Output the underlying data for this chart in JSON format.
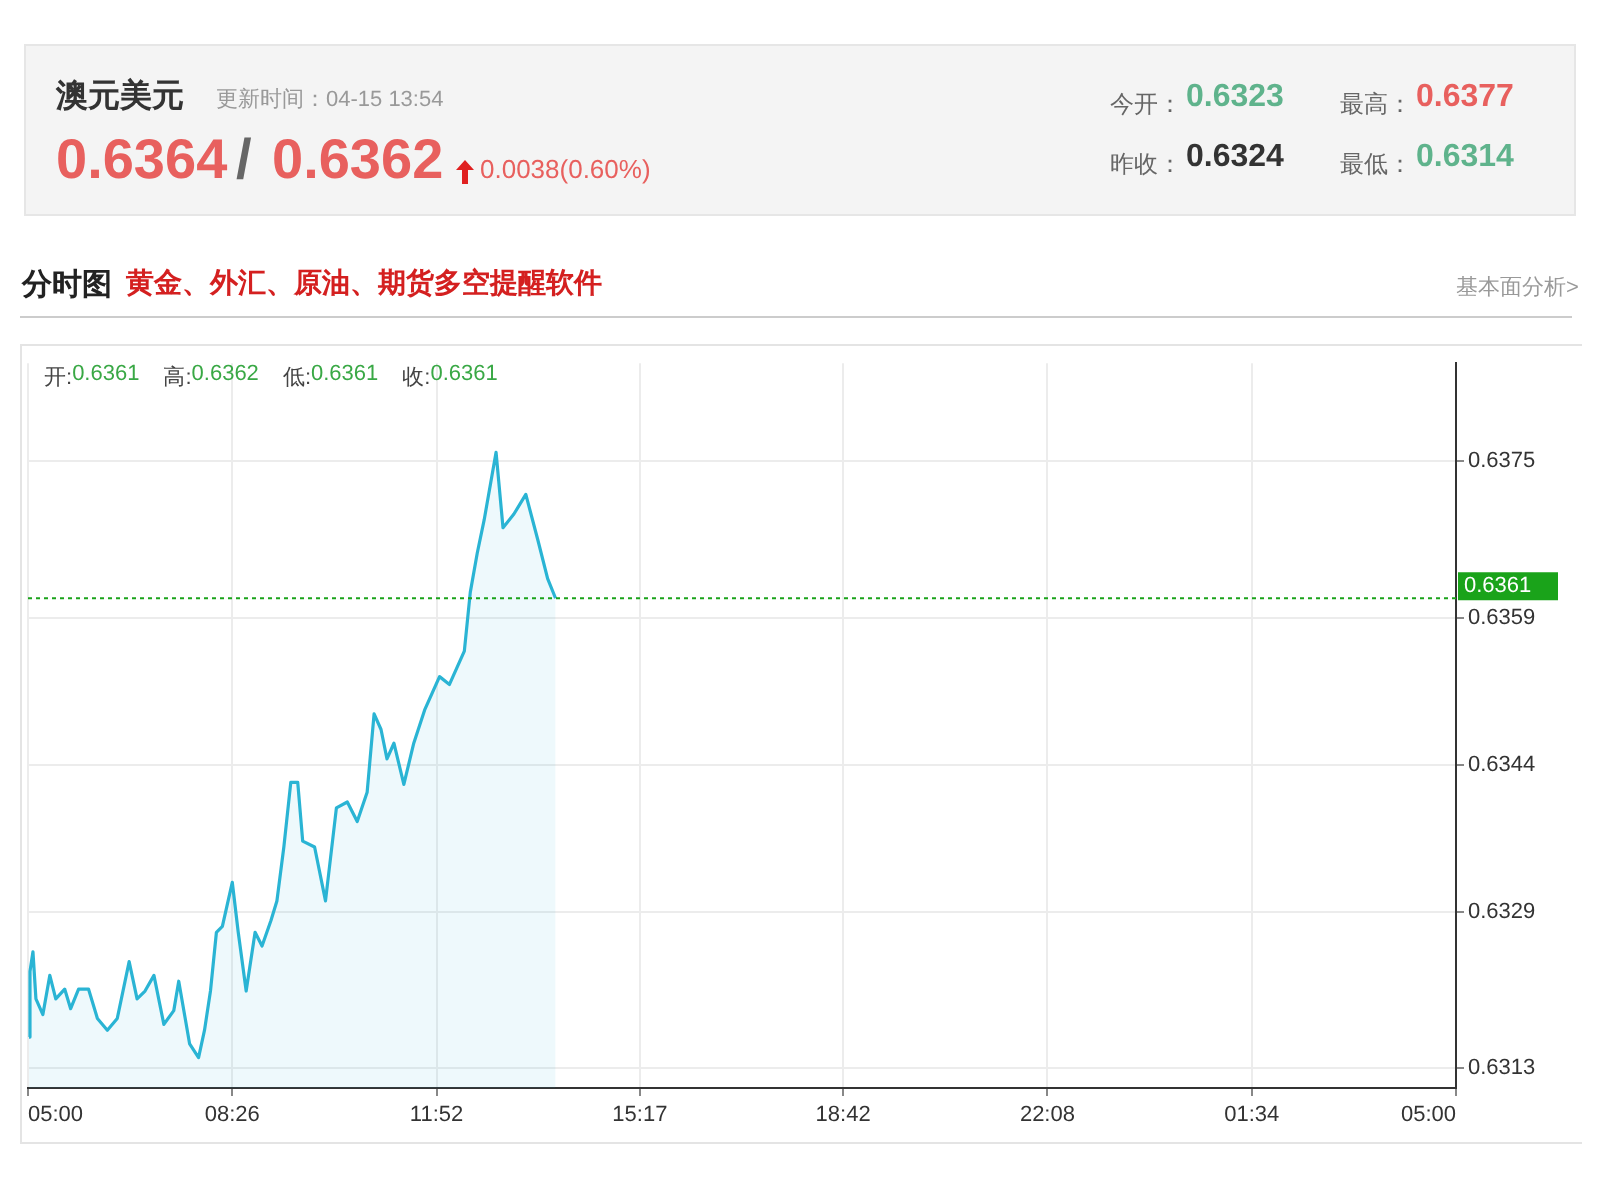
{
  "chart_data": {
    "type": "area",
    "title": "澳元美元",
    "subtitle": "更新时间：04-15 13:54",
    "annotations": [
      "0.6364",
      "/",
      "0.6362",
      "0.0038(0.60%)",
      "今开：",
      "0.6323",
      "最高：",
      "0.6377",
      "昨收：",
      "0.6324",
      "最低：",
      "0.6314",
      "分时图",
      "黄金、外汇、原油、期货多空提醒软件",
      "基本面分析>",
      "开:",
      "0.6361",
      "高:",
      "0.6362",
      "低:",
      "0.6361",
      "收:",
      "0.6361"
    ],
    "x": [
      "--04-15T05:01",
      "--04-15T05:02",
      "--04-15T05:05",
      "--04-15T05:08",
      "--04-15T05:15",
      "--04-15T05:22",
      "--04-15T05:28",
      "--04-15T05:37",
      "--04-15T05:43",
      "--04-15T05:51",
      "--04-15T06:01",
      "--04-15T06:10",
      "--04-15T06:20",
      "--04-15T06:30",
      "--04-15T06:42",
      "--04-15T06:50",
      "--04-15T06:58",
      "--04-15T07:07",
      "--04-15T07:17",
      "--04-15T07:27",
      "--04-15T07:32",
      "--04-15T07:43",
      "--04-15T07:52",
      "--04-15T07:58",
      "--04-15T08:04",
      "--04-15T08:10",
      "--04-15T08:16",
      "--04-15T08:26",
      "--04-15T08:32",
      "--04-15T08:40",
      "--04-15T08:49",
      "--04-15T08:56",
      "--04-15T09:05",
      "--04-15T09:11",
      "--04-15T09:18",
      "--04-15T09:25",
      "--04-15T09:32",
      "--04-15T09:37",
      "--04-15T09:49",
      "--04-15T10:00",
      "--04-15T10:11",
      "--04-15T10:22",
      "--04-15T10:32",
      "--04-15T10:42",
      "--04-15T10:49",
      "--04-15T10:56",
      "--04-15T11:02",
      "--04-15T11:09",
      "--04-15T11:19",
      "--04-15T11:29",
      "--04-15T11:40",
      "--04-15T11:55",
      "--04-15T12:05",
      "--04-15T12:20",
      "--04-15T12:26",
      "--04-15T12:33",
      "--04-15T12:40",
      "--04-15T12:52",
      "--04-15T12:59",
      "--04-15T13:10",
      "--04-15T13:22",
      "--04-15T13:34",
      "--04-15T13:44",
      "--04-15T13:52"
    ],
    "series": [
      {
        "color": "#2ab4d4",
        "values": [
          0.63162,
          0.63229,
          0.63249,
          0.63201,
          0.63185,
          0.63225,
          0.63201,
          0.63211,
          0.63191,
          0.63211,
          0.63211,
          0.63181,
          0.63169,
          0.63181,
          0.63239,
          0.63201,
          0.63209,
          0.63225,
          0.63175,
          0.63189,
          0.63219,
          0.63155,
          0.63141,
          0.63169,
          0.63209,
          0.63269,
          0.63275,
          0.6332,
          0.63269,
          0.63209,
          0.63269,
          0.63255,
          0.63281,
          0.63301,
          0.63356,
          0.63422,
          0.63422,
          0.63362,
          0.63356,
          0.63301,
          0.63396,
          0.63402,
          0.63382,
          0.63412,
          0.63492,
          0.63476,
          0.63446,
          0.63462,
          0.6342,
          0.63462,
          0.63496,
          0.6353,
          0.63522,
          0.63556,
          0.63616,
          0.63656,
          0.6369,
          0.63759,
          0.63682,
          0.63696,
          0.63716,
          0.6367,
          0.6363,
          0.6361
        ]
      }
    ],
    "xlim": [
      "--04-15T05:00",
      "--04-16T05:00"
    ],
    "xticks": [
      {
        "value": "--04-15T05:00",
        "label": "05:00"
      },
      {
        "value": "--04-15T08:26",
        "label": "08:26"
      },
      {
        "value": "--04-15T11:52",
        "label": "11:52"
      },
      {
        "value": "--04-15T15:17",
        "label": "15:17"
      },
      {
        "value": "--04-15T18:42",
        "label": "18:42"
      },
      {
        "value": "--04-15T22:08",
        "label": "22:08"
      },
      {
        "value": "--04-16T01:34",
        "label": "01:34"
      },
      {
        "value": "--04-16T05:00",
        "label": "05:00"
      }
    ],
    "ylim": [
      0.6311,
      0.6385
    ],
    "yticks": [
      0.6313,
      0.6329,
      0.6344,
      0.6359,
      0.6375
    ],
    "ref_lines": [
      {
        "axis": "y",
        "value": 0.6361,
        "label": "0.6361",
        "color": "#1aa31a",
        "line_style": "dotted"
      }
    ],
    "grid": true,
    "legend": false,
    "marker": "none",
    "line_style": "solid"
  }
}
